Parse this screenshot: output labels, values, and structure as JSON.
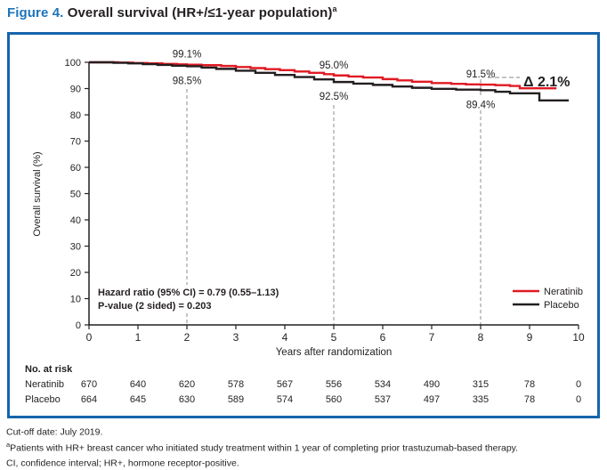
{
  "figure": {
    "label": "Figure 4.",
    "title": " Overall survival (HR+/≤1-year population)",
    "title_sup": "a"
  },
  "colors": {
    "accent_blue": "#1b75bc",
    "panel_border": "#1565ab",
    "neratinib_red": "#e01a23",
    "placebo_black": "#231f20",
    "axis": "#231f20",
    "dashed_gray": "#a0a0a0"
  },
  "chart_data": {
    "type": "line",
    "subtype": "kaplan-meier-step",
    "title": "Overall survival (HR+/≤1-year population)",
    "xlabel": "Years after randomization",
    "ylabel": "Overall survival (%)",
    "xlim": [
      0,
      10
    ],
    "ylim": [
      0,
      100
    ],
    "xticks": [
      0,
      1,
      2,
      3,
      4,
      5,
      6,
      7,
      8,
      9,
      10
    ],
    "yticks": [
      0,
      10,
      20,
      30,
      40,
      50,
      60,
      70,
      80,
      90,
      100
    ],
    "grid": false,
    "legend_position": "right-middle",
    "reference_lines_x": [
      2,
      5,
      8
    ],
    "series": [
      {
        "name": "Neratinib",
        "color": "#e01a23",
        "points": [
          [
            0,
            100
          ],
          [
            0.6,
            99.9
          ],
          [
            0.9,
            99.7
          ],
          [
            1.2,
            99.6
          ],
          [
            1.5,
            99.4
          ],
          [
            1.8,
            99.2
          ],
          [
            2,
            99.1
          ],
          [
            2.3,
            98.9
          ],
          [
            2.7,
            98.6
          ],
          [
            3,
            98.2
          ],
          [
            3.3,
            97.8
          ],
          [
            3.6,
            97.4
          ],
          [
            3.9,
            97.0
          ],
          [
            4.2,
            96.5
          ],
          [
            4.5,
            96.0
          ],
          [
            4.8,
            95.5
          ],
          [
            5,
            95.0
          ],
          [
            5.3,
            94.6
          ],
          [
            5.6,
            94.2
          ],
          [
            6,
            93.6
          ],
          [
            6.3,
            93.1
          ],
          [
            6.6,
            92.6
          ],
          [
            7,
            92.1
          ],
          [
            7.4,
            91.8
          ],
          [
            7.7,
            91.6
          ],
          [
            8,
            91.5
          ],
          [
            8.3,
            91.3
          ],
          [
            8.6,
            91.0
          ],
          [
            8.8,
            90.1
          ],
          [
            9.55,
            90.1
          ]
        ]
      },
      {
        "name": "Placebo",
        "color": "#231f20",
        "points": [
          [
            0,
            100
          ],
          [
            0.5,
            99.8
          ],
          [
            0.8,
            99.6
          ],
          [
            1.1,
            99.3
          ],
          [
            1.4,
            99.0
          ],
          [
            1.7,
            98.7
          ],
          [
            2,
            98.5
          ],
          [
            2.3,
            98.0
          ],
          [
            2.6,
            97.5
          ],
          [
            3,
            96.8
          ],
          [
            3.4,
            96.0
          ],
          [
            3.8,
            95.2
          ],
          [
            4.2,
            94.4
          ],
          [
            4.6,
            93.5
          ],
          [
            5,
            92.5
          ],
          [
            5.4,
            91.9
          ],
          [
            5.8,
            91.4
          ],
          [
            6.2,
            90.8
          ],
          [
            6.6,
            90.3
          ],
          [
            7,
            89.9
          ],
          [
            7.5,
            89.6
          ],
          [
            8,
            89.4
          ],
          [
            8.3,
            88.8
          ],
          [
            8.6,
            88.2
          ],
          [
            9.2,
            88.2
          ],
          [
            9.2,
            85.5
          ],
          [
            9.8,
            85.5
          ]
        ]
      }
    ],
    "annotations": [
      {
        "x": 2,
        "value": 99.1,
        "label": "99.1%",
        "placement": "above"
      },
      {
        "x": 2,
        "value": 98.5,
        "label": "98.5%",
        "placement": "below"
      },
      {
        "x": 5,
        "value": 95.0,
        "label": "95.0%",
        "placement": "above"
      },
      {
        "x": 5,
        "value": 92.5,
        "label": "92.5%",
        "placement": "below"
      },
      {
        "x": 8,
        "value": 91.5,
        "label": "91.5%",
        "placement": "above"
      },
      {
        "x": 8,
        "value": 89.4,
        "label": "89.4%",
        "placement": "below"
      }
    ],
    "delta_label": "Δ 2.1%",
    "stats": [
      "Hazard ratio (95% CI) = 0.79 (0.55–1.13)",
      "P-value (2 sided) = 0.203"
    ],
    "at_risk": {
      "header": "No. at risk",
      "rows": [
        {
          "name": "Neratinib",
          "values": [
            "670",
            "640",
            "620",
            "578",
            "567",
            "556",
            "534",
            "490",
            "315",
            "78",
            "0"
          ]
        },
        {
          "name": "Placebo",
          "values": [
            "664",
            "645",
            "630",
            "589",
            "574",
            "560",
            "537",
            "497",
            "335",
            "78",
            "0"
          ]
        }
      ]
    }
  },
  "footnotes": [
    {
      "sup": "",
      "text": "Cut-off date: July 2019."
    },
    {
      "sup": "a",
      "text": "Patients with HR+ breast cancer who initiated study treatment within 1 year of completing prior trastuzumab-based therapy."
    },
    {
      "sup": "",
      "text": "CI, confidence interval; HR+, hormone receptor-positive."
    }
  ]
}
